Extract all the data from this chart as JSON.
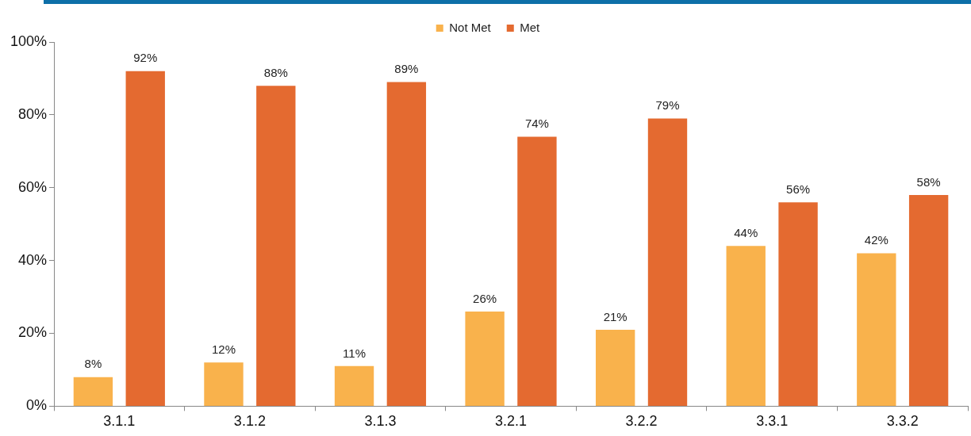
{
  "chart_data": {
    "type": "bar",
    "categories": [
      "3.1.1",
      "3.1.2",
      "3.1.3",
      "3.2.1",
      "3.2.2",
      "3.3.1",
      "3.3.2"
    ],
    "series": [
      {
        "name": "Not Met",
        "color": "#f9b24c",
        "values": [
          8,
          12,
          11,
          26,
          21,
          44,
          42
        ],
        "value_labels": [
          "8%",
          "12%",
          "11%",
          "26%",
          "21%",
          "44%",
          "42%"
        ]
      },
      {
        "name": "Met",
        "color": "#e46a30",
        "values": [
          92,
          88,
          89,
          74,
          79,
          56,
          58
        ],
        "value_labels": [
          "92%",
          "88%",
          "89%",
          "74%",
          "79%",
          "56%",
          "58%"
        ]
      }
    ],
    "ylim": [
      0,
      100
    ],
    "yticks": [
      {
        "value": 0,
        "label": "0%"
      },
      {
        "value": 20,
        "label": "20%"
      },
      {
        "value": 40,
        "label": "40%"
      },
      {
        "value": 60,
        "label": "60%"
      },
      {
        "value": 80,
        "label": "80%"
      },
      {
        "value": 100,
        "label": "100%"
      }
    ],
    "grid": false,
    "legend": "top"
  }
}
